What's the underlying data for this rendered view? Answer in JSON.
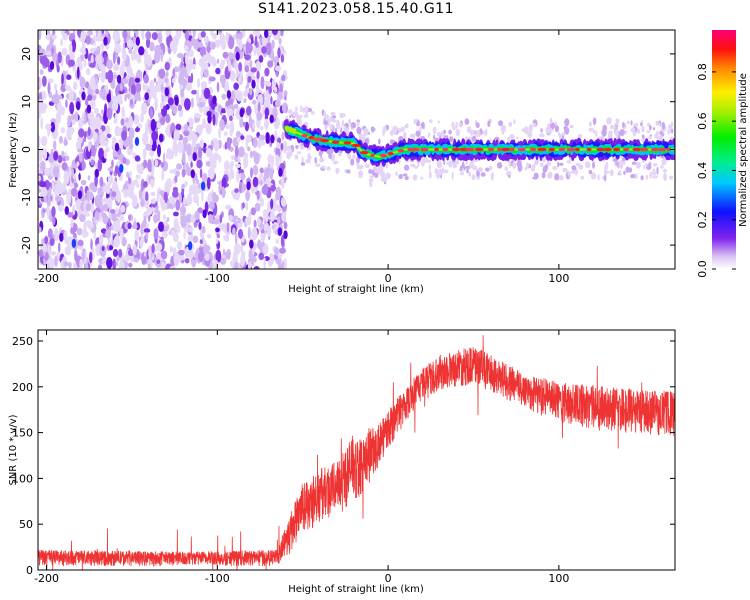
{
  "title": "S141.2023.058.15.40.G11",
  "chart_data": [
    {
      "type": "heatmap",
      "xlabel": "Height of straight line (km)",
      "ylabel": "Frequency (Hz)",
      "xlim": [
        -205,
        168
      ],
      "ylim": [
        -25,
        25
      ],
      "xticks": [
        -200,
        -100,
        0,
        100
      ],
      "yticks": [
        -20,
        -10,
        0,
        10,
        20
      ],
      "colorbar": {
        "label": "Normalized spectral amplitude",
        "range": [
          0.0,
          0.97
        ],
        "ticks": [
          0.0,
          0.2,
          0.4,
          0.6,
          0.8
        ]
      },
      "noise_region_x": [
        -205,
        -60
      ],
      "signal_track": {
        "x": [
          -60,
          -55,
          -50,
          -40,
          -30,
          -20,
          -15,
          -10,
          -5,
          0,
          10,
          30,
          50,
          100,
          168
        ],
        "frequency": [
          4.5,
          3.8,
          3.0,
          2.0,
          1.5,
          1.3,
          -0.5,
          -1.2,
          -1.5,
          -1.0,
          0.0,
          0.0,
          0.0,
          0.0,
          0.0
        ]
      }
    },
    {
      "type": "line",
      "xlabel": "Height of straight line (km)",
      "ylabel": "SNR (10 * v/v)",
      "xlim": [
        -205,
        168
      ],
      "ylim": [
        0,
        262
      ],
      "xticks": [
        -200,
        -100,
        0,
        100
      ],
      "yticks": [
        0,
        50,
        100,
        150,
        200,
        250
      ],
      "color": "#ee3333",
      "envelope": {
        "x": [
          -205,
          -120,
          -65,
          -58,
          -50,
          -40,
          -30,
          -20,
          -15,
          -10,
          -5,
          0,
          10,
          20,
          30,
          40,
          50,
          60,
          80,
          100,
          130,
          168
        ],
        "low": [
          4,
          4,
          4,
          15,
          40,
          50,
          60,
          70,
          85,
          95,
          110,
          130,
          160,
          185,
          195,
          200,
          200,
          195,
          175,
          160,
          150,
          145
        ],
        "high": [
          22,
          20,
          22,
          60,
          95,
          110,
          120,
          150,
          140,
          155,
          160,
          175,
          200,
          220,
          235,
          240,
          245,
          235,
          215,
          205,
          200,
          195
        ]
      }
    }
  ]
}
